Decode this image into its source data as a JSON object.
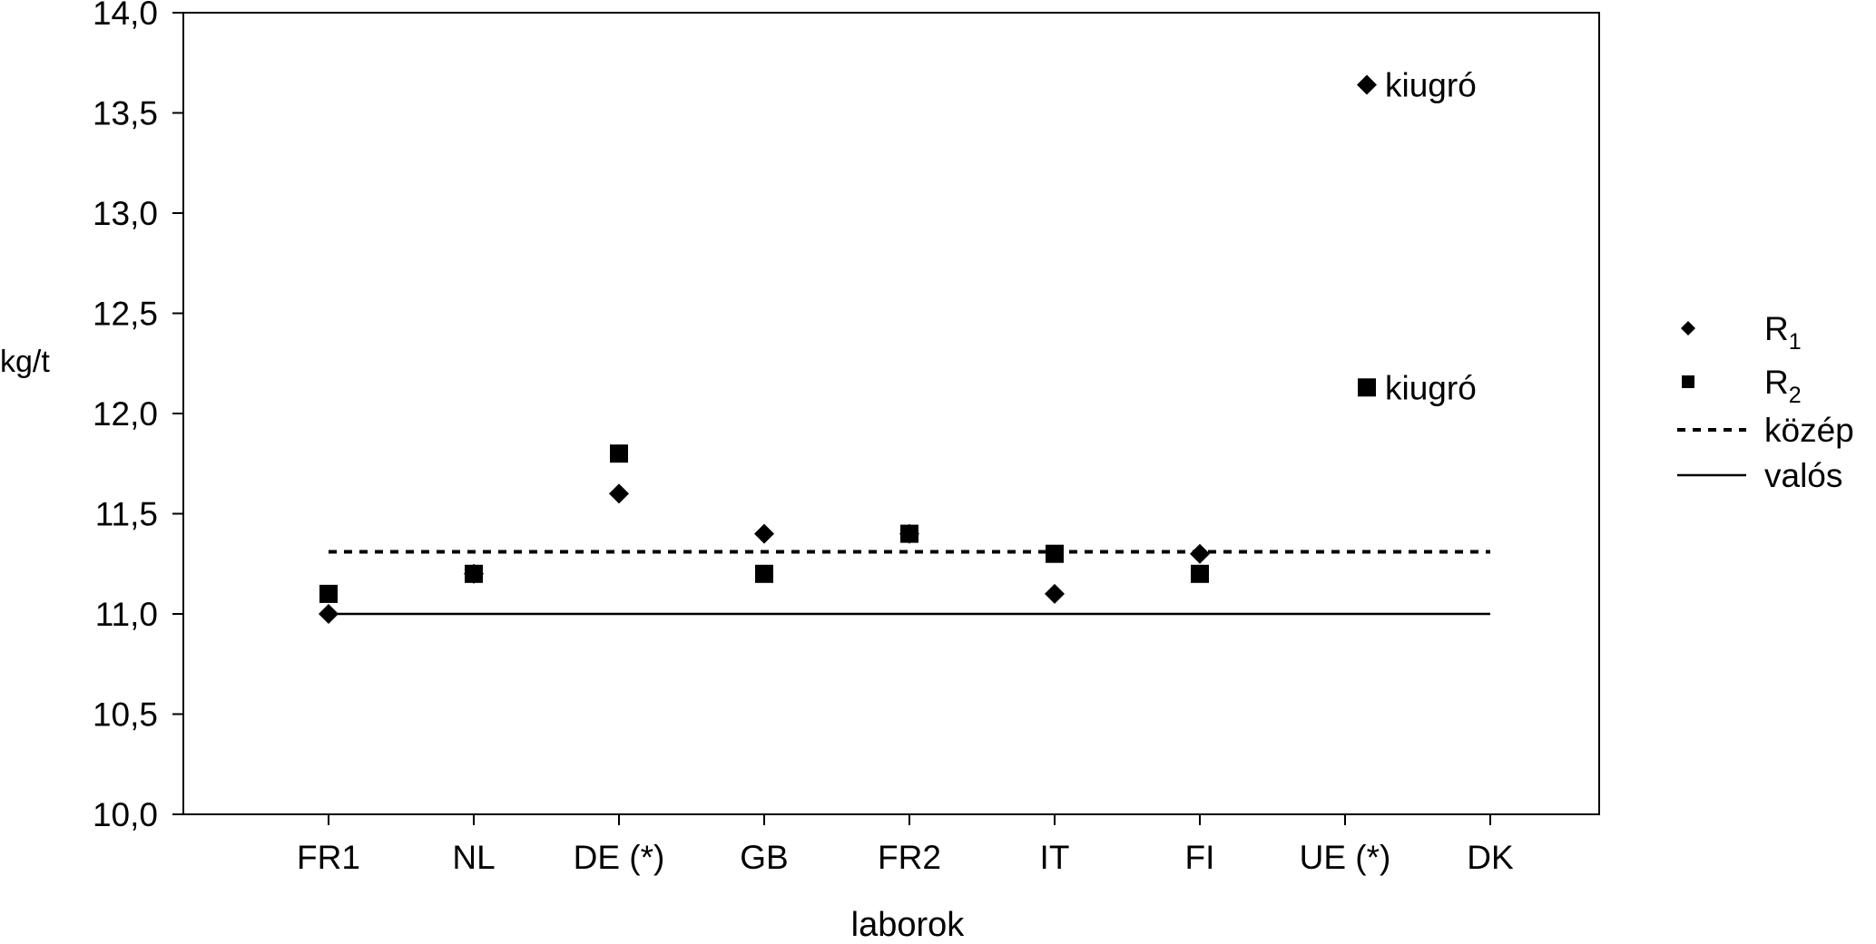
{
  "chart_data": {
    "type": "scatter",
    "title": "",
    "xlabel": "laborok",
    "ylabel": "kg/t",
    "categories": [
      "FR1",
      "NL",
      "DE (*)",
      "GB",
      "FR2",
      "IT",
      "FI",
      "UE (*)",
      "DK"
    ],
    "ylim": [
      10.0,
      14.0
    ],
    "yticks": [
      "10,0",
      "10,5",
      "11,0",
      "11,5",
      "12,0",
      "12,5",
      "13,0",
      "13,5",
      "14,0"
    ],
    "ytick_values": [
      10.0,
      10.5,
      11.0,
      11.5,
      12.0,
      12.5,
      13.0,
      13.5,
      14.0
    ],
    "grid": false,
    "legend_position": "right",
    "series": [
      {
        "name": "R1",
        "label_main": "R",
        "label_sub": "1",
        "marker": "diamond",
        "values": [
          11.0,
          11.2,
          11.6,
          11.4,
          11.4,
          11.1,
          11.3,
          13.64,
          null
        ]
      },
      {
        "name": "R2",
        "label_main": "R",
        "label_sub": "2",
        "marker": "square",
        "values": [
          11.1,
          11.2,
          11.8,
          11.2,
          11.4,
          11.3,
          11.2,
          12.13,
          null
        ]
      }
    ],
    "reference_lines": [
      {
        "name": "közép",
        "style": "dashed",
        "value": 11.31,
        "from": "FR1",
        "to": "DK"
      },
      {
        "name": "valós",
        "style": "solid",
        "value": 11.0,
        "from": "FR1",
        "to": "DK"
      }
    ],
    "annotations": [
      {
        "text": "kiugró",
        "series": "R1",
        "category": "UE (*)"
      },
      {
        "text": "kiugró",
        "series": "R2",
        "category": "UE (*)"
      }
    ],
    "colors": {
      "markers": "#000000",
      "lines": "#000000",
      "background": "#ffffff"
    }
  }
}
